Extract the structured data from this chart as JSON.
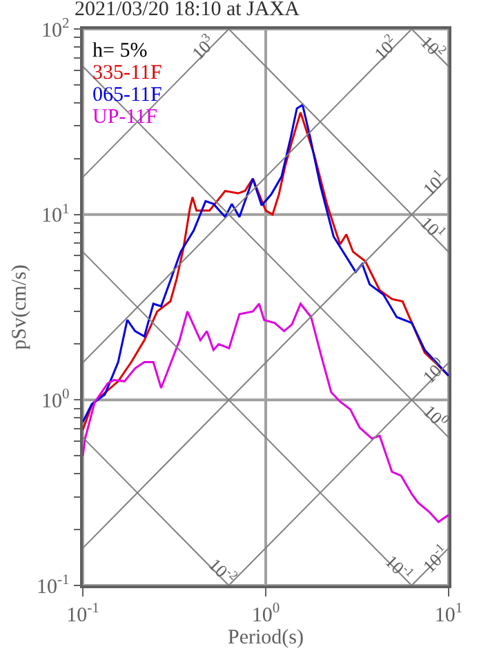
{
  "chart_data": {
    "type": "line",
    "title": "2021/03/20 18:10 at JAXA",
    "xlabel": "Period(s)",
    "ylabel": "pSv(cm/s)",
    "log": "xy",
    "grid": true,
    "legend": "top left",
    "xlim": [
      0.1,
      10
    ],
    "ylim": [
      0.1,
      100
    ],
    "xticks": [
      {
        "value": 0.1,
        "label": "10$^{-1}$"
      },
      {
        "value": 1,
        "label": "10$^{0}$"
      },
      {
        "value": 10,
        "label": "10$^{1}$"
      }
    ],
    "yticks": [
      {
        "value": 0.1,
        "label": "10$^{-1}$"
      },
      {
        "value": 0.2,
        "label": null
      },
      {
        "value": 0.3,
        "label": null
      },
      {
        "value": 0.4,
        "label": null
      },
      {
        "value": 0.5,
        "label": null
      },
      {
        "value": 0.6,
        "label": null
      },
      {
        "value": 0.7,
        "label": null
      },
      {
        "value": 0.8,
        "label": null
      },
      {
        "value": 0.9,
        "label": null
      },
      {
        "value": 1,
        "label": "10$^{0}$"
      },
      {
        "value": 2,
        "label": null
      },
      {
        "value": 3,
        "label": null
      },
      {
        "value": 4,
        "label": null
      },
      {
        "value": 5,
        "label": null
      },
      {
        "value": 6,
        "label": null
      },
      {
        "value": 7,
        "label": null
      },
      {
        "value": 8,
        "label": null
      },
      {
        "value": 9,
        "label": null
      },
      {
        "value": 10,
        "label": "10$^{1}$"
      },
      {
        "value": 20,
        "label": null
      },
      {
        "value": 30,
        "label": null
      },
      {
        "value": 40,
        "label": null
      },
      {
        "value": 50,
        "label": null
      },
      {
        "value": 60,
        "label": null
      },
      {
        "value": 70,
        "label": null
      },
      {
        "value": 80,
        "label": null
      },
      {
        "value": 90,
        "label": null
      },
      {
        "value": 100,
        "label": "10$^{2}$"
      }
    ],
    "series": [
      {
        "name": "335-11F",
        "color": "#e00000",
        "x": [
          0.1,
          0.112,
          0.126,
          0.156,
          0.184,
          0.217,
          0.255,
          0.301,
          0.326,
          0.355,
          0.385,
          0.398,
          0.418,
          0.493,
          0.6,
          0.707,
          0.77,
          0.85,
          1.0,
          1.09,
          1.18,
          1.28,
          1.39,
          1.55,
          1.84,
          2.16,
          2.35,
          2.55,
          2.76,
          3.0,
          3.5,
          4.2,
          4.9,
          5.6,
          6.3,
          7.4,
          8.8,
          10
        ],
        "values": [
          0.69,
          0.94,
          1.05,
          1.26,
          1.6,
          2.1,
          3.0,
          3.4,
          4.5,
          6.6,
          10.8,
          12.4,
          10.5,
          10.5,
          13.4,
          13,
          13.4,
          15.6,
          10.5,
          10,
          12.8,
          18.4,
          24.7,
          35.5,
          21,
          11.4,
          8.8,
          6.9,
          7.8,
          6.3,
          5.6,
          3.9,
          3.5,
          3.4,
          2.6,
          1.8,
          1.53,
          1.35
        ]
      },
      {
        "name": "065-11F",
        "color": "#0000e0",
        "x": [
          0.1,
          0.112,
          0.132,
          0.156,
          0.175,
          0.193,
          0.217,
          0.243,
          0.268,
          0.301,
          0.343,
          0.404,
          0.469,
          0.518,
          0.6,
          0.653,
          0.718,
          0.78,
          0.85,
          0.95,
          1.07,
          1.22,
          1.37,
          1.48,
          1.59,
          1.75,
          1.99,
          2.35,
          2.76,
          3.1,
          3.37,
          3.7,
          4.4,
          5.2,
          6.3,
          7.4,
          10
        ],
        "values": [
          0.76,
          0.95,
          1.07,
          1.6,
          2.7,
          2.35,
          2.2,
          3.3,
          3.2,
          4.4,
          6.3,
          8.2,
          11.8,
          11.4,
          9.7,
          11.4,
          9.7,
          12.2,
          15.6,
          11.2,
          12.8,
          16,
          26,
          37.3,
          39,
          26,
          14.3,
          7.6,
          5.9,
          4.9,
          5.4,
          4.2,
          3.7,
          2.8,
          2.6,
          1.86,
          1.35
        ]
      },
      {
        "name": "UP-11F",
        "color": "#e000e0",
        "x": [
          0.1,
          0.103,
          0.116,
          0.137,
          0.148,
          0.169,
          0.193,
          0.217,
          0.243,
          0.268,
          0.301,
          0.338,
          0.373,
          0.439,
          0.477,
          0.518,
          0.553,
          0.63,
          0.718,
          0.85,
          0.92,
          0.98,
          1.12,
          1.26,
          1.39,
          1.55,
          1.77,
          1.99,
          2.28,
          2.55,
          2.9,
          3.26,
          3.8,
          4.2,
          4.9,
          5.5,
          6.3,
          6.8,
          7.8,
          8.8,
          10
        ],
        "values": [
          0.5,
          0.62,
          0.97,
          1.23,
          1.28,
          1.26,
          1.48,
          1.6,
          1.6,
          1.16,
          1.56,
          2.1,
          3.0,
          2.1,
          2.35,
          1.86,
          2.0,
          1.9,
          2.9,
          3.0,
          3.3,
          2.7,
          2.6,
          2.35,
          2.55,
          3.3,
          2.8,
          1.8,
          1.1,
          0.98,
          0.89,
          0.71,
          0.62,
          0.64,
          0.41,
          0.39,
          0.31,
          0.28,
          0.25,
          0.22,
          0.24
        ]
      },
      {
        "color": "#808080",
        "x": [
          0.1,
          0.628
        ],
        "values": [
          15.9,
          100
        ]
      },
      {
        "color": "#808080",
        "x": [
          0.1,
          6.28
        ],
        "values": [
          1.59,
          100
        ]
      },
      {
        "color": "#808080",
        "x": [
          0.1,
          10
        ],
        "values": [
          0.159,
          15.9
        ]
      },
      {
        "color": "#808080",
        "x": [
          0.628,
          10
        ],
        "values": [
          0.1,
          1.59
        ]
      },
      {
        "color": "#808080",
        "x": [
          6.28,
          10
        ],
        "values": [
          0.1,
          0.159
        ]
      },
      {
        "color": "#808080",
        "x": [
          6.28,
          10
        ],
        "values": [
          100,
          62.8
        ]
      },
      {
        "color": "#808080",
        "x": [
          0.628,
          10
        ],
        "values": [
          100,
          6.28
        ]
      },
      {
        "color": "#808080",
        "x": [
          0.1,
          10
        ],
        "values": [
          62.8,
          0.628
        ]
      },
      {
        "color": "#808080",
        "x": [
          0.1,
          6.28
        ],
        "values": [
          6.28,
          0.1
        ]
      },
      {
        "color": "#808080",
        "x": [
          0.1,
          0.628
        ],
        "values": [
          0.628,
          0.1
        ]
      }
    ],
    "annotations": [
      "h= 5%",
      {
        "text": "10$^{3}$",
        "x": 0.45,
        "y": 80
      },
      {
        "text": "10$^{2}$",
        "x": 4.5,
        "y": 80
      },
      {
        "text": "10$^{2}$",
        "x": 8.3,
        "y": 80
      },
      {
        "text": "10$^{1}$",
        "x": 8.3,
        "y": 15
      },
      {
        "text": "10$^{1}$",
        "x": 8.3,
        "y": 8.5
      },
      {
        "text": "10$^{0}$",
        "x": 8.3,
        "y": 1.45
      },
      {
        "text": "10$^{0}$",
        "x": 8.5,
        "y": 0.82
      },
      {
        "text": "10$^{-2}$",
        "x": 0.58,
        "y": 0.12
      },
      {
        "text": "10$^{-1}$",
        "x": 5.4,
        "y": 0.125
      },
      {
        "text": "10$^{-1}$",
        "x": 8.5,
        "y": 0.14
      }
    ]
  }
}
